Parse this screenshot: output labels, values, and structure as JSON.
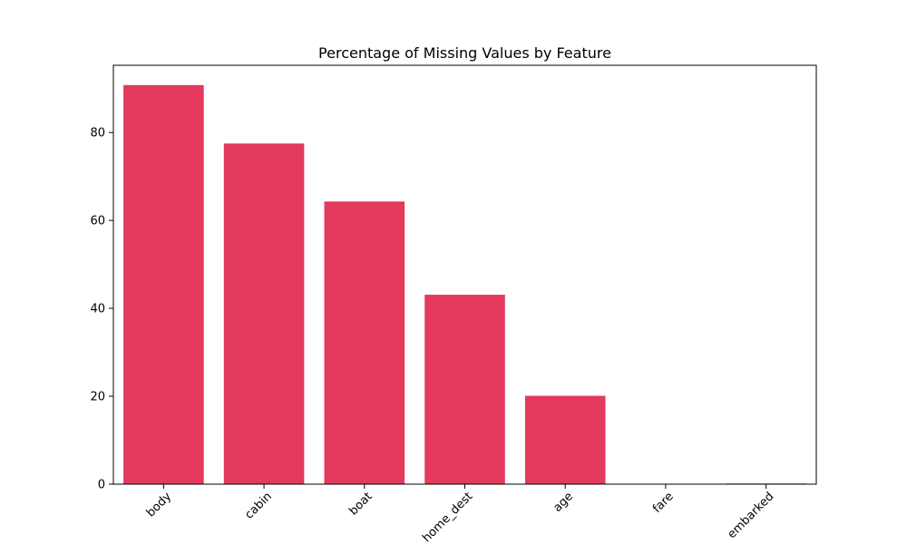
{
  "chart_data": {
    "type": "bar",
    "title": "Percentage of Missing Values by Feature",
    "xlabel": "",
    "ylabel": "",
    "categories": [
      "body",
      "cabin",
      "boat",
      "home_dest",
      "age",
      "fare",
      "embarked"
    ],
    "values": [
      90.8,
      77.5,
      64.3,
      43.1,
      20.1,
      0.08,
      0.15
    ],
    "ylim": [
      0,
      95.3
    ],
    "yticks": [
      0,
      20,
      40,
      60,
      80
    ],
    "bar_color": "#e33a5e",
    "grid": false,
    "legend": "none"
  }
}
